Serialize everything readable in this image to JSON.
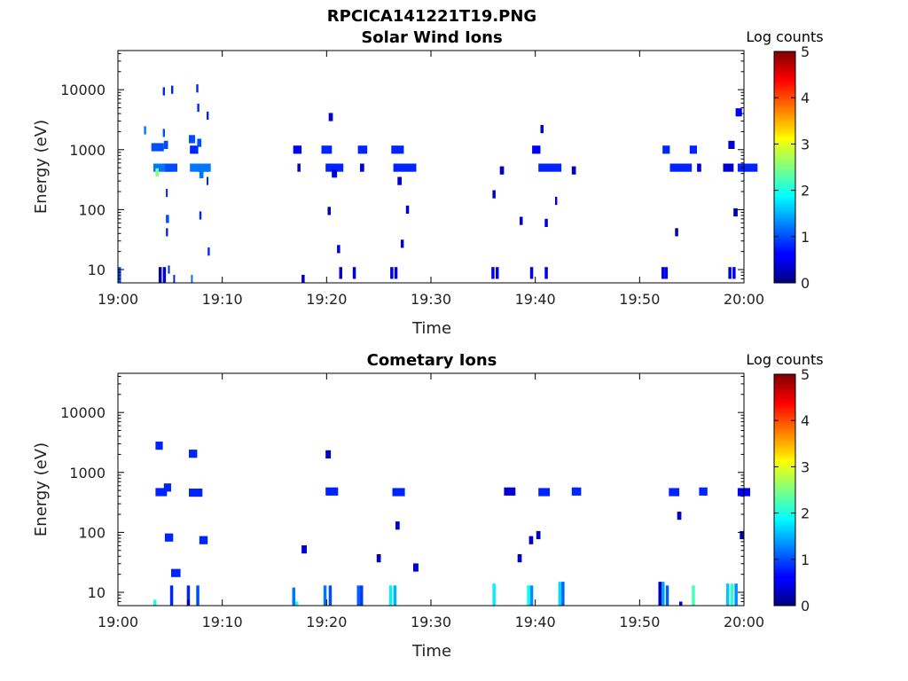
{
  "figure_title": "RPCICA141221T19.PNG",
  "chart_data": [
    {
      "type": "heatmap",
      "title": "Solar Wind Ions",
      "xlabel": "Time",
      "ylabel": "Energy (eV)",
      "x_ticks": [
        "19:00",
        "19:10",
        "19:20",
        "19:30",
        "19:40",
        "19:50",
        "20:00"
      ],
      "xlim_minutes": [
        0,
        60
      ],
      "y_scale": "log",
      "ylim": [
        6,
        45000
      ],
      "y_ticks": [
        10,
        100,
        1000,
        10000
      ],
      "y_tick_labels": [
        "10",
        "100",
        "1000",
        "10000"
      ],
      "colorbar": {
        "label": "Log counts",
        "min": 0,
        "max": 5,
        "ticks": [
          "0",
          "1",
          "2",
          "3",
          "4",
          "5"
        ]
      },
      "cells": [
        [
          2.5,
          2100,
          0.2,
          1.2
        ],
        [
          3.2,
          1100,
          1.2,
          1.0
        ],
        [
          3.4,
          500,
          1.9,
          1.2
        ],
        [
          3.6,
          420,
          0.3,
          2.5
        ],
        [
          4.3,
          9400,
          0.2,
          0.8
        ],
        [
          4.3,
          1900,
          0.2,
          1.0
        ],
        [
          4.4,
          1200,
          0.4,
          1.0
        ],
        [
          4.5,
          500,
          1.2,
          1.0
        ],
        [
          4.6,
          70,
          0.3,
          1.0
        ],
        [
          4.6,
          42,
          0.2,
          0.8
        ],
        [
          4.6,
          190,
          0.1,
          0.8
        ],
        [
          4.8,
          10,
          0.1,
          0.8
        ],
        [
          5.3,
          7,
          0.1,
          0.8
        ],
        [
          5.1,
          10000,
          0.2,
          0.8
        ],
        [
          6.8,
          1500,
          0.6,
          1.0
        ],
        [
          6.9,
          1000,
          0.8,
          0.8
        ],
        [
          6.9,
          500,
          1.8,
          1.2
        ],
        [
          7.0,
          7,
          0.1,
          1.2
        ],
        [
          7.5,
          10500,
          0.2,
          0.8
        ],
        [
          7.6,
          5000,
          0.2,
          0.8
        ],
        [
          7.6,
          1300,
          0.4,
          1.0
        ],
        [
          7.7,
          500,
          1.2,
          1.2
        ],
        [
          7.8,
          390,
          0.4,
          1.2
        ],
        [
          7.8,
          80,
          0.2,
          0.8
        ],
        [
          8.5,
          3700,
          0.2,
          0.8
        ],
        [
          8.5,
          300,
          0.1,
          0.8
        ],
        [
          8.6,
          20,
          0.2,
          0.8
        ],
        [
          16.8,
          1000,
          0.8,
          0.6
        ],
        [
          17.2,
          500,
          0.3,
          0.3
        ],
        [
          17.6,
          7,
          0.3,
          0.3
        ],
        [
          19.5,
          1000,
          1.0,
          0.8
        ],
        [
          19.9,
          500,
          1.7,
          0.8
        ],
        [
          20.2,
          3500,
          0.4,
          0.4
        ],
        [
          20.5,
          400,
          0.5,
          0.4
        ],
        [
          20.1,
          95,
          0.3,
          0.3
        ],
        [
          21.0,
          22,
          0.3,
          0.4
        ],
        [
          23.0,
          1000,
          0.9,
          0.8
        ],
        [
          23.2,
          500,
          0.4,
          0.4
        ],
        [
          26.2,
          1000,
          1.2,
          0.8
        ],
        [
          26.4,
          500,
          2.2,
          0.8
        ],
        [
          26.8,
          300,
          0.4,
          0.4
        ],
        [
          27.1,
          27,
          0.3,
          0.4
        ],
        [
          27.6,
          100,
          0.3,
          0.4
        ],
        [
          35.9,
          180,
          0.3,
          0.4
        ],
        [
          36.6,
          450,
          0.4,
          0.3
        ],
        [
          38.5,
          65,
          0.3,
          0.3
        ],
        [
          39.7,
          1000,
          0.8,
          0.6
        ],
        [
          40.3,
          500,
          2.2,
          0.8
        ],
        [
          40.5,
          2200,
          0.3,
          0.4
        ],
        [
          40.9,
          60,
          0.3,
          0.4
        ],
        [
          41.9,
          140,
          0.2,
          0.3
        ],
        [
          43.5,
          450,
          0.4,
          0.3
        ],
        [
          52.2,
          1000,
          0.7,
          0.8
        ],
        [
          52.9,
          500,
          2.1,
          0.8
        ],
        [
          53.4,
          42,
          0.3,
          0.3
        ],
        [
          54.8,
          1000,
          0.7,
          0.8
        ],
        [
          55.5,
          500,
          0.4,
          0.4
        ],
        [
          58.0,
          500,
          1.0,
          0.4
        ],
        [
          58.5,
          1200,
          0.6,
          0.4
        ],
        [
          59.4,
          500,
          1.9,
          0.8
        ],
        [
          59.2,
          4200,
          0.6,
          0.6
        ],
        [
          59.0,
          90,
          0.4,
          0.3
        ]
      ],
      "bars": [
        [
          0,
          6,
          11,
          1.0
        ],
        [
          3.9,
          6,
          11,
          0.2
        ],
        [
          4.3,
          6,
          11,
          0.4
        ],
        [
          21.2,
          7,
          11,
          0.4
        ],
        [
          22.5,
          7,
          11,
          0.4
        ],
        [
          26.1,
          7,
          11,
          0.5
        ],
        [
          26.5,
          7,
          11,
          0.5
        ],
        [
          35.8,
          7,
          11,
          0.5
        ],
        [
          36.2,
          7,
          11,
          0.5
        ],
        [
          39.5,
          7,
          11,
          0.5
        ],
        [
          40.9,
          7,
          11,
          0.5
        ],
        [
          52.1,
          7,
          11,
          0.5
        ],
        [
          52.4,
          7,
          11,
          0.5
        ],
        [
          58.5,
          7,
          11,
          0.5
        ],
        [
          58.9,
          7,
          11,
          0.5
        ]
      ]
    },
    {
      "type": "heatmap",
      "title": "Cometary Ions",
      "xlabel": "Time",
      "ylabel": "Energy (eV)",
      "x_ticks": [
        "19:00",
        "19:10",
        "19:20",
        "19:30",
        "19:40",
        "19:50",
        "20:00"
      ],
      "xlim_minutes": [
        0,
        60
      ],
      "y_scale": "log",
      "ylim": [
        6,
        45000
      ],
      "y_ticks": [
        10,
        100,
        1000,
        10000
      ],
      "y_tick_labels": [
        "10",
        "100",
        "1000",
        "10000"
      ],
      "colorbar": {
        "label": "Log counts",
        "min": 0,
        "max": 5,
        "ticks": [
          "0",
          "1",
          "2",
          "3",
          "4",
          "5"
        ]
      },
      "cells": [
        [
          3.6,
          2800,
          0.7,
          0.8
        ],
        [
          3.6,
          470,
          1.1,
          0.8
        ],
        [
          4.4,
          560,
          0.7,
          0.8
        ],
        [
          4.5,
          82,
          0.8,
          0.8
        ],
        [
          5.1,
          21,
          0.9,
          0.8
        ],
        [
          6.8,
          2050,
          0.8,
          0.8
        ],
        [
          6.8,
          460,
          1.3,
          0.8
        ],
        [
          7.8,
          74,
          0.8,
          0.8
        ],
        [
          17.6,
          52,
          0.5,
          0.4
        ],
        [
          19.9,
          2000,
          0.5,
          0.3
        ],
        [
          19.9,
          480,
          1.2,
          0.8
        ],
        [
          24.8,
          37,
          0.4,
          0.3
        ],
        [
          26.3,
          470,
          1.2,
          0.8
        ],
        [
          26.6,
          130,
          0.4,
          0.3
        ],
        [
          28.3,
          26,
          0.5,
          0.4
        ],
        [
          37.0,
          480,
          1.1,
          0.4
        ],
        [
          38.3,
          37,
          0.4,
          0.3
        ],
        [
          39.4,
          74,
          0.4,
          0.3
        ],
        [
          40.3,
          470,
          1.1,
          0.8
        ],
        [
          40.1,
          90,
          0.4,
          0.3
        ],
        [
          43.5,
          480,
          0.9,
          0.8
        ],
        [
          52.8,
          470,
          1.0,
          0.8
        ],
        [
          53.6,
          190,
          0.4,
          0.3
        ],
        [
          55.7,
          480,
          0.8,
          0.8
        ],
        [
          59.4,
          470,
          1.2,
          0.6
        ],
        [
          59.6,
          90,
          0.4,
          0.3
        ]
      ],
      "bars": [
        [
          3.4,
          6,
          7.5,
          2.0
        ],
        [
          5.0,
          6,
          13,
          0.8
        ],
        [
          6.6,
          6,
          7.5,
          0.2
        ],
        [
          6.6,
          7.5,
          13,
          0.8
        ],
        [
          7.5,
          6,
          13,
          1.0
        ],
        [
          16.7,
          6,
          12,
          1.2
        ],
        [
          17.0,
          6,
          7,
          2.0
        ],
        [
          19.7,
          6,
          13,
          1.2
        ],
        [
          20.2,
          6,
          13,
          1.0
        ],
        [
          22.9,
          6,
          13,
          1.1
        ],
        [
          23.2,
          6,
          13,
          0.9
        ],
        [
          26.0,
          6,
          13,
          1.8
        ],
        [
          26.4,
          6,
          13,
          1.5
        ],
        [
          35.9,
          6,
          14,
          1.8
        ],
        [
          39.2,
          6,
          13,
          1.9
        ],
        [
          39.5,
          6,
          13,
          1.3
        ],
        [
          42.2,
          6,
          15,
          1.7
        ],
        [
          42.5,
          6,
          15,
          1.1
        ],
        [
          51.8,
          6,
          15,
          0.3
        ],
        [
          52.1,
          6,
          15,
          1.4
        ],
        [
          52.5,
          6,
          13,
          1.1
        ],
        [
          53.8,
          6,
          7,
          0.5
        ],
        [
          55.0,
          6,
          13,
          2.2
        ],
        [
          58.3,
          6,
          14,
          1.6
        ],
        [
          58.7,
          6,
          14,
          2.1
        ],
        [
          59.1,
          6,
          14,
          1.3
        ]
      ]
    }
  ]
}
